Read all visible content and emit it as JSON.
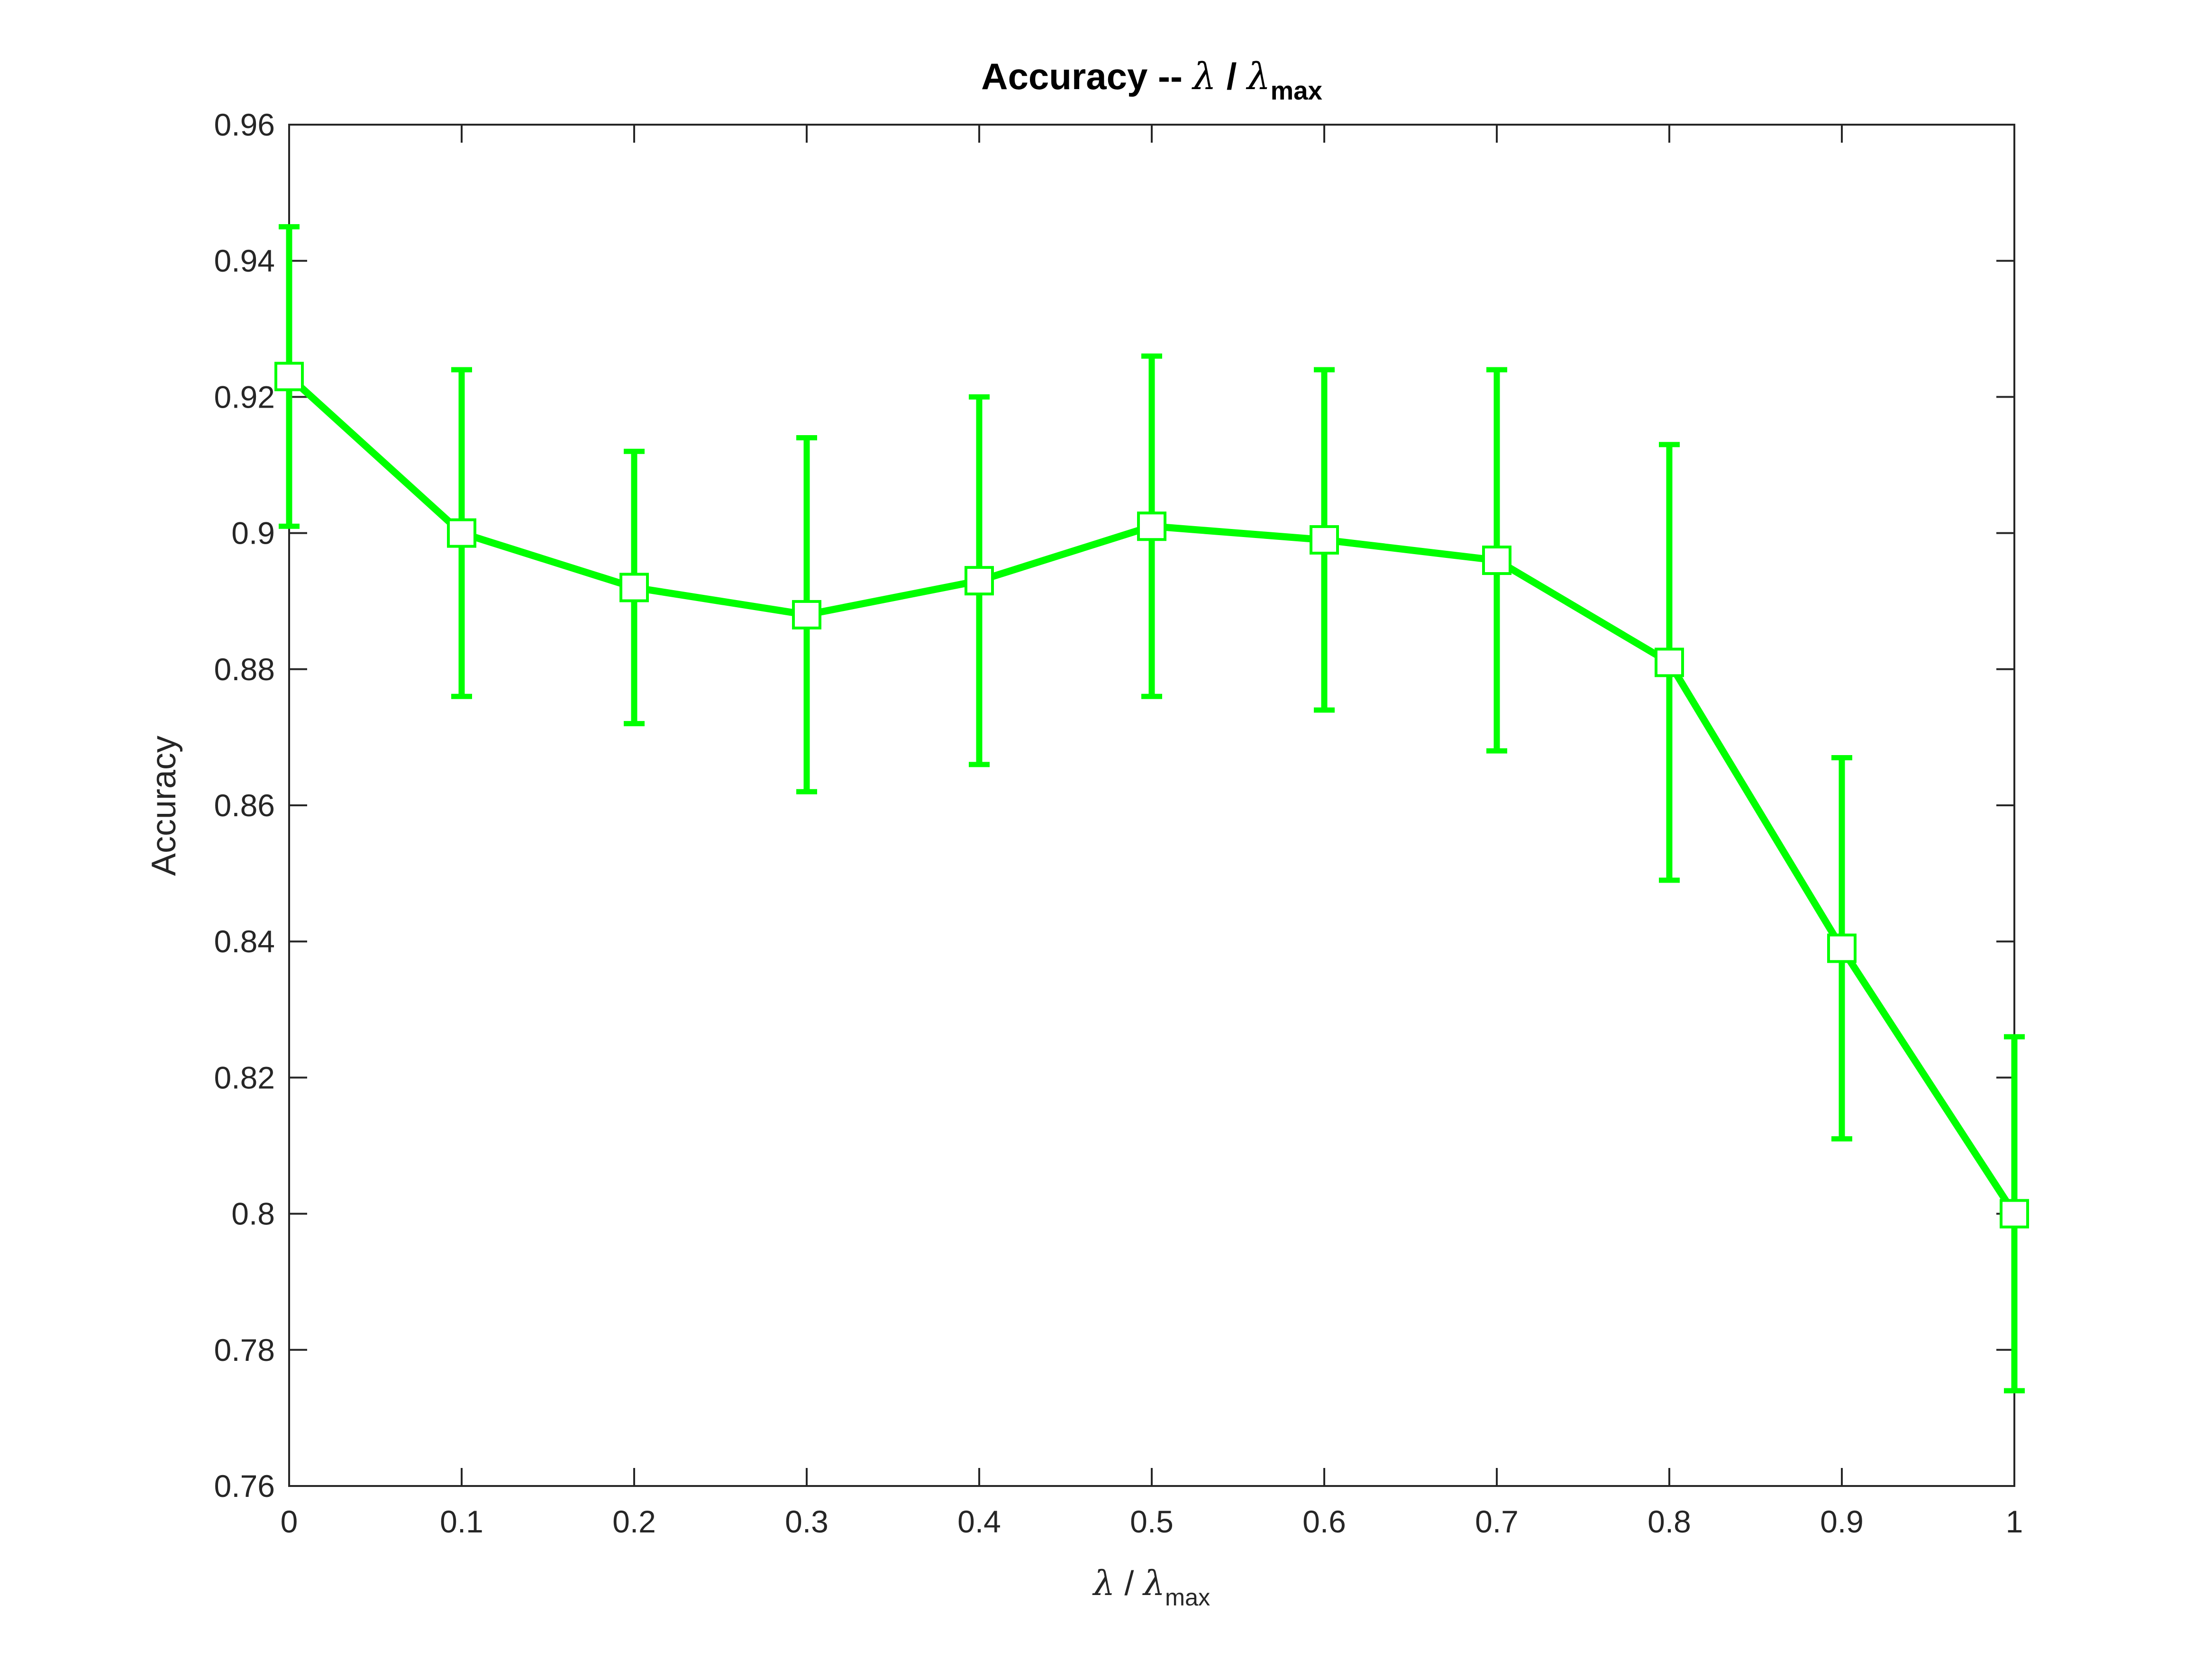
{
  "chart_data": {
    "type": "line",
    "title": {
      "prefix": "Accuracy -- ",
      "symbol": "λ",
      "separator": " / ",
      "symbol2": "λ",
      "subscript": "max"
    },
    "xlabel": {
      "symbol": "λ",
      "separator": " / ",
      "symbol2": "λ",
      "subscript": "max"
    },
    "ylabel": "Accuracy",
    "xlim": [
      0,
      1
    ],
    "ylim": [
      0.76,
      0.96
    ],
    "xticks": [
      0,
      0.1,
      0.2,
      0.3,
      0.4,
      0.5,
      0.6,
      0.7,
      0.8,
      0.9,
      1
    ],
    "xtick_labels": [
      "0",
      "0.1",
      "0.2",
      "0.3",
      "0.4",
      "0.5",
      "0.6",
      "0.7",
      "0.8",
      "0.9",
      "1"
    ],
    "yticks": [
      0.76,
      0.78,
      0.8,
      0.82,
      0.84,
      0.86,
      0.88,
      0.9,
      0.92,
      0.94,
      0.96
    ],
    "ytick_labels": [
      "0.76",
      "0.78",
      "0.8",
      "0.82",
      "0.84",
      "0.86",
      "0.88",
      "0.9",
      "0.92",
      "0.94",
      "0.96"
    ],
    "grid": false,
    "box": true,
    "series": [
      {
        "x": [
          0,
          0.1,
          0.2,
          0.3,
          0.4,
          0.5,
          0.6,
          0.7,
          0.8,
          0.9,
          1
        ],
        "y": [
          0.923,
          0.9,
          0.892,
          0.888,
          0.893,
          0.901,
          0.899,
          0.896,
          0.881,
          0.839,
          0.8
        ],
        "err_upper": [
          0.945,
          0.924,
          0.912,
          0.914,
          0.92,
          0.926,
          0.924,
          0.924,
          0.913,
          0.867,
          0.826
        ],
        "err_lower": [
          0.901,
          0.876,
          0.872,
          0.862,
          0.866,
          0.876,
          0.874,
          0.868,
          0.849,
          0.811,
          0.774
        ],
        "color": "#00ff00",
        "marker": "square",
        "marker_fill": "#ffffff"
      }
    ]
  }
}
